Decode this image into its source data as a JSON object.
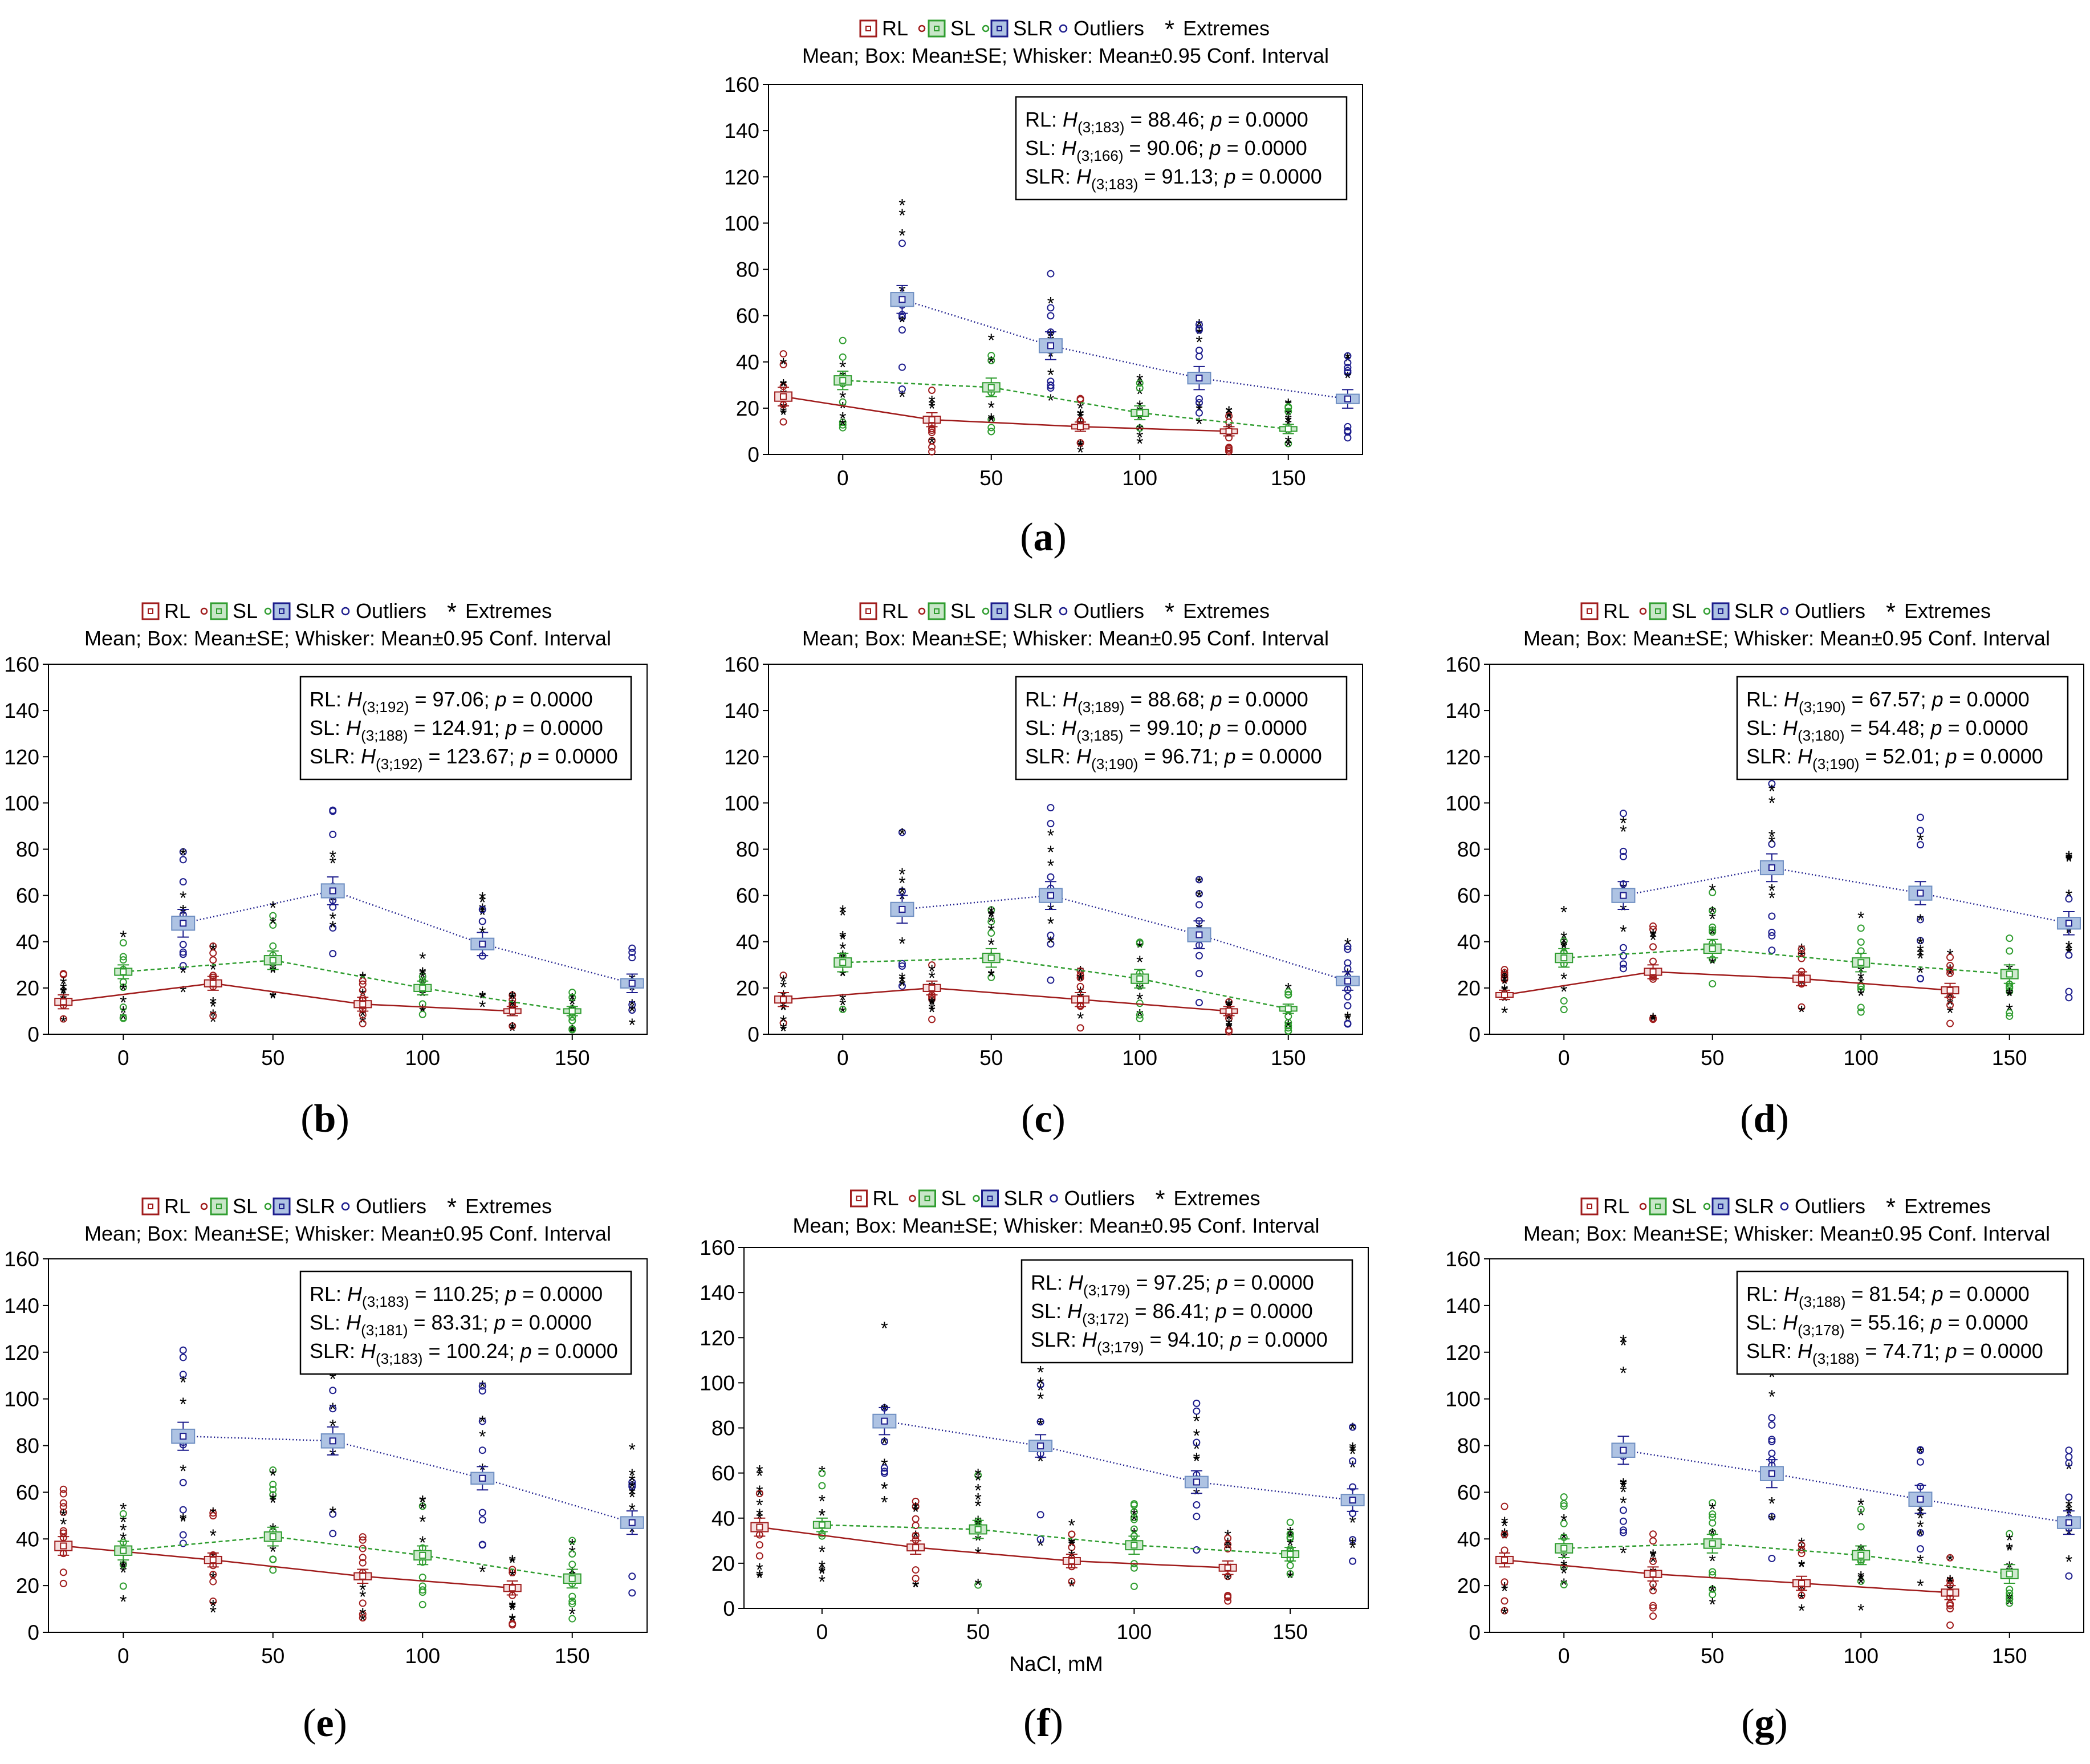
{
  "legend": {
    "rl": "RL",
    "sl": "SL",
    "slr": "SLR",
    "outliers": "Outliers",
    "extremes": "Extremes",
    "subtitle": "Mean; Box: Mean±SE; Whisker: Mean±0.95 Conf. Interval"
  },
  "colors": {
    "rl": "#a01c1c",
    "sl": "#2f9d2f",
    "slr": "#1c1c8c",
    "box_fill": "#aec3e3",
    "grid": "#000000"
  },
  "x_axis_label": "NaCl, mM",
  "chart_data": [
    {
      "id": "a",
      "label": "a",
      "type": "box",
      "categories": [
        0,
        50,
        100,
        150
      ],
      "xlabel": "",
      "ylim": [
        0,
        160
      ],
      "yticks": [
        0,
        20,
        40,
        60,
        80,
        100,
        120,
        140,
        160
      ],
      "series": [
        {
          "name": "RL",
          "means": [
            25,
            15,
            12,
            10
          ],
          "se": [
            2,
            1.5,
            1,
            1
          ],
          "ci": [
            4,
            3,
            2,
            2
          ]
        },
        {
          "name": "SL",
          "means": [
            32,
            29,
            18,
            11
          ],
          "se": [
            2,
            2,
            1.5,
            1
          ],
          "ci": [
            4,
            4,
            3,
            2
          ]
        },
        {
          "name": "SLR",
          "means": [
            67,
            47,
            33,
            24
          ],
          "se": [
            3,
            3,
            2.5,
            2
          ],
          "ci": [
            6,
            6,
            5,
            4
          ]
        }
      ],
      "stats": [
        {
          "name": "RL",
          "n": "3;183",
          "h": "88.46",
          "p": "0.0000"
        },
        {
          "name": "SL",
          "n": "3;166",
          "h": "90.06",
          "p": "0.0000"
        },
        {
          "name": "SLR",
          "n": "3;183",
          "h": "91.13",
          "p": "0.0000"
        }
      ]
    },
    {
      "id": "b",
      "label": "b",
      "type": "box",
      "categories": [
        0,
        50,
        100,
        150
      ],
      "xlabel": "",
      "ylim": [
        0,
        160
      ],
      "yticks": [
        0,
        20,
        40,
        60,
        80,
        100,
        120,
        140,
        160
      ],
      "series": [
        {
          "name": "RL",
          "means": [
            14,
            22,
            13,
            10
          ],
          "se": [
            1.5,
            1.5,
            1.5,
            1
          ],
          "ci": [
            3,
            3,
            3,
            2
          ]
        },
        {
          "name": "SL",
          "means": [
            27,
            32,
            20,
            10
          ],
          "se": [
            1.5,
            2,
            1.5,
            1
          ],
          "ci": [
            3,
            4,
            3,
            2
          ]
        },
        {
          "name": "SLR",
          "means": [
            48,
            62,
            39,
            22
          ],
          "se": [
            3,
            3,
            2.5,
            2
          ],
          "ci": [
            6,
            6,
            5,
            4
          ]
        }
      ],
      "stats": [
        {
          "name": "RL",
          "n": "3;192",
          "h": "97.06",
          "p": "0.0000"
        },
        {
          "name": "SL",
          "n": "3;188",
          "h": "124.91",
          "p": "0.0000"
        },
        {
          "name": "SLR",
          "n": "3;192",
          "h": "123.67",
          "p": "0.0000"
        }
      ]
    },
    {
      "id": "c",
      "label": "c",
      "type": "box",
      "categories": [
        0,
        50,
        100,
        150
      ],
      "xlabel": "",
      "ylim": [
        0,
        160
      ],
      "yticks": [
        0,
        20,
        40,
        60,
        80,
        100,
        120,
        140,
        160
      ],
      "series": [
        {
          "name": "RL",
          "means": [
            15,
            20,
            15,
            10
          ],
          "se": [
            1.5,
            1.5,
            1.5,
            1
          ],
          "ci": [
            3,
            3,
            3,
            2
          ]
        },
        {
          "name": "SL",
          "means": [
            31,
            33,
            24,
            11
          ],
          "se": [
            2,
            2,
            2,
            1
          ],
          "ci": [
            4,
            4,
            4,
            2
          ]
        },
        {
          "name": "SLR",
          "means": [
            54,
            60,
            43,
            23
          ],
          "se": [
            3,
            3,
            3,
            2
          ],
          "ci": [
            6,
            6,
            6,
            4
          ]
        }
      ],
      "stats": [
        {
          "name": "RL",
          "n": "3;189",
          "h": "88.68",
          "p": "0.0000"
        },
        {
          "name": "SL",
          "n": "3;185",
          "h": "99.10",
          "p": "0.0000"
        },
        {
          "name": "SLR",
          "n": "3;190",
          "h": "96.71",
          "p": "0.0000"
        }
      ]
    },
    {
      "id": "d",
      "label": "d",
      "type": "box",
      "categories": [
        0,
        50,
        100,
        150
      ],
      "xlabel": "",
      "ylim": [
        0,
        160
      ],
      "yticks": [
        0,
        20,
        40,
        60,
        80,
        100,
        120,
        140,
        160
      ],
      "series": [
        {
          "name": "RL",
          "means": [
            17,
            27,
            24,
            19
          ],
          "se": [
            1,
            1.5,
            1.5,
            1.5
          ],
          "ci": [
            2,
            3,
            3,
            3
          ]
        },
        {
          "name": "SL",
          "means": [
            33,
            37,
            31,
            26
          ],
          "se": [
            2,
            2,
            2,
            2
          ],
          "ci": [
            4,
            4,
            4,
            4
          ]
        },
        {
          "name": "SLR",
          "means": [
            60,
            72,
            61,
            48
          ],
          "se": [
            3,
            3,
            3,
            2.5
          ],
          "ci": [
            6,
            6,
            5,
            5
          ]
        }
      ],
      "stats": [
        {
          "name": "RL",
          "n": "3;190",
          "h": "67.57",
          "p": "0.0000"
        },
        {
          "name": "SL",
          "n": "3;180",
          "h": "54.48",
          "p": "0.0000"
        },
        {
          "name": "SLR",
          "n": "3;190",
          "h": "52.01",
          "p": "0.0000"
        }
      ]
    },
    {
      "id": "e",
      "label": "e",
      "type": "box",
      "categories": [
        0,
        50,
        100,
        150
      ],
      "xlabel": "",
      "ylim": [
        0,
        160
      ],
      "yticks": [
        0,
        20,
        40,
        60,
        80,
        100,
        120,
        140,
        160
      ],
      "series": [
        {
          "name": "RL",
          "means": [
            37,
            31,
            24,
            19
          ],
          "se": [
            2,
            1.5,
            1.5,
            1.5
          ],
          "ci": [
            4,
            3,
            3,
            3
          ]
        },
        {
          "name": "SL",
          "means": [
            35,
            41,
            33,
            23
          ],
          "se": [
            2,
            2,
            2,
            2
          ],
          "ci": [
            4,
            4,
            4,
            4
          ]
        },
        {
          "name": "SLR",
          "means": [
            84,
            82,
            66,
            47
          ],
          "se": [
            3,
            3,
            2.5,
            2.5
          ],
          "ci": [
            6,
            6,
            5,
            5
          ]
        }
      ],
      "stats": [
        {
          "name": "RL",
          "n": "3;183",
          "h": "110.25",
          "p": "0.0000"
        },
        {
          "name": "SL",
          "n": "3;181",
          "h": "83.31",
          "p": "0.0000"
        },
        {
          "name": "SLR",
          "n": "3;183",
          "h": "100.24",
          "p": "0.0000"
        }
      ]
    },
    {
      "id": "f",
      "label": "f",
      "type": "box",
      "categories": [
        0,
        50,
        100,
        150
      ],
      "xlabel": "NaCl, mM",
      "ylim": [
        0,
        160
      ],
      "yticks": [
        0,
        20,
        40,
        60,
        80,
        100,
        120,
        140,
        160
      ],
      "series": [
        {
          "name": "RL",
          "means": [
            36,
            27,
            21,
            18
          ],
          "se": [
            2,
            1.5,
            1.5,
            1.5
          ],
          "ci": [
            4,
            3,
            3,
            3
          ]
        },
        {
          "name": "SL",
          "means": [
            37,
            35,
            28,
            24
          ],
          "se": [
            1.5,
            2,
            2,
            1.5
          ],
          "ci": [
            3,
            4,
            4,
            3
          ]
        },
        {
          "name": "SLR",
          "means": [
            83,
            72,
            56,
            48
          ],
          "se": [
            3,
            2.5,
            2.5,
            2.5
          ],
          "ci": [
            6,
            5,
            5,
            5
          ]
        }
      ],
      "stats": [
        {
          "name": "RL",
          "n": "3;179",
          "h": "97.25",
          "p": "0.0000"
        },
        {
          "name": "SL",
          "n": "3;172",
          "h": "86.41",
          "p": "0.0000"
        },
        {
          "name": "SLR",
          "n": "3;179",
          "h": "94.10",
          "p": "0.0000"
        }
      ]
    },
    {
      "id": "g",
      "label": "g",
      "type": "box",
      "categories": [
        0,
        50,
        100,
        150
      ],
      "xlabel": "",
      "ylim": [
        0,
        160
      ],
      "yticks": [
        0,
        20,
        40,
        60,
        80,
        100,
        120,
        140,
        160
      ],
      "series": [
        {
          "name": "RL",
          "means": [
            31,
            25,
            21,
            17
          ],
          "se": [
            1.5,
            1.5,
            1.5,
            1.5
          ],
          "ci": [
            3,
            3,
            3,
            3
          ]
        },
        {
          "name": "SL",
          "means": [
            36,
            38,
            33,
            25
          ],
          "se": [
            2,
            2,
            2,
            2
          ],
          "ci": [
            4,
            4,
            4,
            4
          ]
        },
        {
          "name": "SLR",
          "means": [
            78,
            68,
            57,
            47
          ],
          "se": [
            3,
            3,
            3,
            2.5
          ],
          "ci": [
            6,
            6,
            6,
            5
          ]
        }
      ],
      "stats": [
        {
          "name": "RL",
          "n": "3;188",
          "h": "81.54",
          "p": "0.0000"
        },
        {
          "name": "SL",
          "n": "3;178",
          "h": "55.16",
          "p": "0.0000"
        },
        {
          "name": "SLR",
          "n": "3;188",
          "h": "74.71",
          "p": "0.0000"
        }
      ]
    }
  ]
}
